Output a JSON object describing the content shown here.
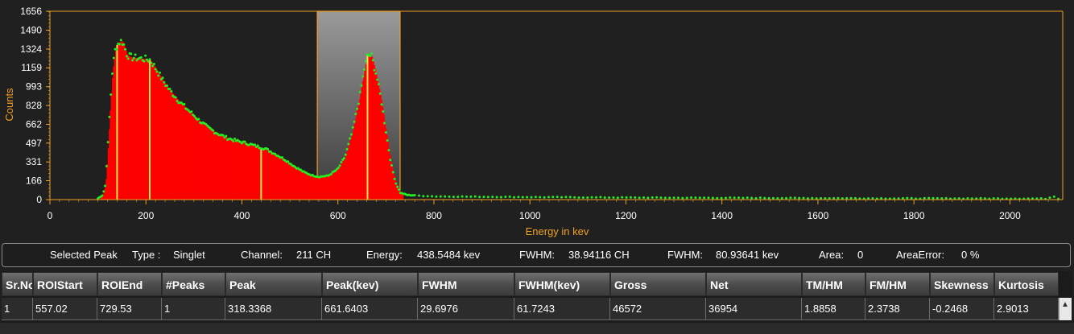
{
  "chart_data": {
    "type": "histogram",
    "xlabel": "Energy in kev",
    "ylabel": "Counts",
    "xlim": [
      0,
      2110
    ],
    "ylim": [
      0,
      1656
    ],
    "yticks": [
      0,
      166,
      331,
      497,
      662,
      828,
      993,
      1159,
      1324,
      1490,
      1656
    ],
    "xticks": [
      0,
      200,
      400,
      600,
      800,
      1000,
      1200,
      1400,
      1600,
      1800,
      2000
    ],
    "grid": false,
    "colors": {
      "bars": "#ff0000",
      "points": "#22ee22",
      "axis": "#f0a020",
      "peak_markers": "#f5e84a",
      "roi": "#8a8a8a"
    },
    "roi": {
      "start": 557.02,
      "end": 729.53
    },
    "peak_markers": [
      140,
      208,
      440,
      661.6
    ],
    "spectrum": [
      [
        0,
        0
      ],
      [
        80,
        2
      ],
      [
        100,
        10
      ],
      [
        110,
        40
      ],
      [
        115,
        120
      ],
      [
        120,
        420
      ],
      [
        125,
        800
      ],
      [
        130,
        1120
      ],
      [
        135,
        1300
      ],
      [
        140,
        1360
      ],
      [
        145,
        1385
      ],
      [
        150,
        1395
      ],
      [
        155,
        1350
      ],
      [
        160,
        1280
      ],
      [
        165,
        1260
      ],
      [
        170,
        1250
      ],
      [
        180,
        1245
      ],
      [
        190,
        1240
      ],
      [
        200,
        1235
      ],
      [
        208,
        1230
      ],
      [
        215,
        1190
      ],
      [
        225,
        1120
      ],
      [
        235,
        1050
      ],
      [
        250,
        960
      ],
      [
        270,
        860
      ],
      [
        290,
        780
      ],
      [
        310,
        700
      ],
      [
        330,
        630
      ],
      [
        350,
        580
      ],
      [
        370,
        540
      ],
      [
        390,
        515
      ],
      [
        410,
        495
      ],
      [
        430,
        470
      ],
      [
        450,
        445
      ],
      [
        470,
        400
      ],
      [
        490,
        350
      ],
      [
        510,
        290
      ],
      [
        530,
        240
      ],
      [
        545,
        215
      ],
      [
        560,
        200
      ],
      [
        580,
        210
      ],
      [
        600,
        270
      ],
      [
        615,
        380
      ],
      [
        630,
        600
      ],
      [
        645,
        900
      ],
      [
        655,
        1150
      ],
      [
        662,
        1275
      ],
      [
        670,
        1260
      ],
      [
        680,
        1100
      ],
      [
        690,
        880
      ],
      [
        700,
        600
      ],
      [
        710,
        330
      ],
      [
        720,
        150
      ],
      [
        730,
        60
      ],
      [
        745,
        40
      ],
      [
        800,
        28
      ],
      [
        900,
        25
      ],
      [
        1000,
        22
      ],
      [
        1100,
        20
      ],
      [
        1200,
        18
      ],
      [
        1300,
        16
      ],
      [
        1400,
        15
      ],
      [
        1500,
        14
      ],
      [
        1600,
        12
      ],
      [
        1700,
        11
      ],
      [
        1800,
        10
      ],
      [
        1900,
        10
      ],
      [
        2000,
        9
      ],
      [
        2080,
        8
      ],
      [
        2090,
        40
      ],
      [
        2095,
        10
      ],
      [
        2110,
        5
      ]
    ]
  },
  "info": {
    "selected_label": "Selected Peak",
    "type_label": "Type :",
    "type_value": "Singlet",
    "channel_label": "Channel:",
    "channel_value": "211 CH",
    "energy_label": "Energy:",
    "energy_value": "438.5484 kev",
    "fwhm_ch_label": "FWHM:",
    "fwhm_ch_value": "38.94116 CH",
    "fwhm_kev_label": "FWHM:",
    "fwhm_kev_value": "80.93641 kev",
    "area_label": "Area:",
    "area_value": "0",
    "area_error_label": "AreaError:",
    "area_error_value": "0 %"
  },
  "table": {
    "columns": [
      "Sr.No",
      "ROIStart",
      "ROIEnd",
      "#Peaks",
      "Peak",
      "Peak(kev)",
      "FWHM",
      "FWHM(kev)",
      "Gross",
      "Net",
      "TM/HM",
      "FM/HM",
      "Skewness",
      "Kurtosis"
    ],
    "rows": [
      [
        "1",
        "557.02",
        "729.53",
        "1",
        "318.3368",
        "661.6403",
        "29.6976",
        "61.7243",
        "46572",
        "36954",
        "1.8858",
        "2.3738",
        "-0.2468",
        "2.9013"
      ]
    ]
  },
  "scrollbar": {
    "up_glyph": "▲"
  }
}
